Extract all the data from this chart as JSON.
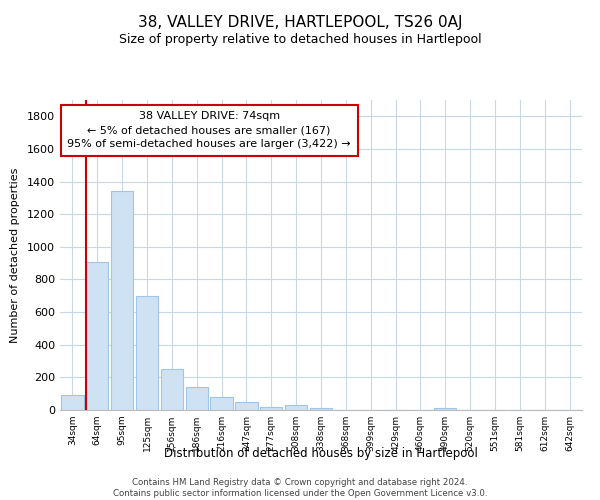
{
  "title": "38, VALLEY DRIVE, HARTLEPOOL, TS26 0AJ",
  "subtitle": "Size of property relative to detached houses in Hartlepool",
  "xlabel": "Distribution of detached houses by size in Hartlepool",
  "ylabel": "Number of detached properties",
  "bar_labels": [
    "34sqm",
    "64sqm",
    "95sqm",
    "125sqm",
    "156sqm",
    "186sqm",
    "216sqm",
    "247sqm",
    "277sqm",
    "308sqm",
    "338sqm",
    "368sqm",
    "399sqm",
    "429sqm",
    "460sqm",
    "490sqm",
    "520sqm",
    "551sqm",
    "581sqm",
    "612sqm",
    "642sqm"
  ],
  "bar_values": [
    90,
    910,
    1340,
    700,
    250,
    140,
    80,
    50,
    20,
    30,
    10,
    0,
    0,
    0,
    0,
    10,
    0,
    0,
    0,
    0,
    0
  ],
  "bar_color": "#cfe2f3",
  "bar_edge_color": "#9fc5e8",
  "vline_x_idx": 1,
  "vline_color": "#cc0000",
  "ylim": [
    0,
    1900
  ],
  "yticks": [
    0,
    200,
    400,
    600,
    800,
    1000,
    1200,
    1400,
    1600,
    1800
  ],
  "annotation_title": "38 VALLEY DRIVE: 74sqm",
  "annotation_line1": "← 5% of detached houses are smaller (167)",
  "annotation_line2": "95% of semi-detached houses are larger (3,422) →",
  "footer_line1": "Contains HM Land Registry data © Crown copyright and database right 2024.",
  "footer_line2": "Contains public sector information licensed under the Open Government Licence v3.0.",
  "background_color": "#ffffff",
  "grid_color": "#c8d8e8"
}
